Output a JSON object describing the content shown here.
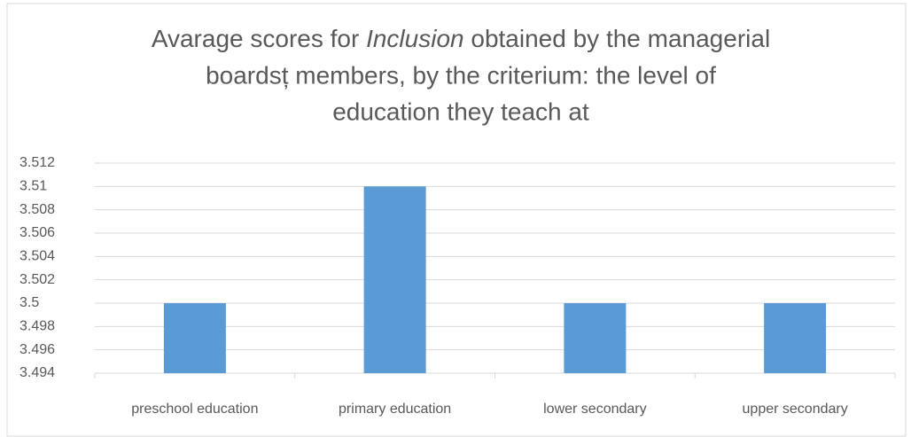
{
  "chart_data": {
    "type": "bar",
    "title": [
      "Avarage scores for ",
      "Inclusion",
      " obtained by the managerial",
      "boardsț members, by the criterium: the level of",
      "education they teach at"
    ],
    "categories": [
      "preschool education",
      "primary education",
      "lower secondary",
      "upper secondary"
    ],
    "values": [
      3.5,
      3.51,
      3.5,
      3.5
    ],
    "color": "#5b9bd5",
    "ylim": [
      3.494,
      3.512
    ],
    "yticks": [
      3.494,
      3.496,
      3.498,
      3.5,
      3.502,
      3.504,
      3.506,
      3.508,
      3.51,
      3.512
    ],
    "grid": true
  }
}
